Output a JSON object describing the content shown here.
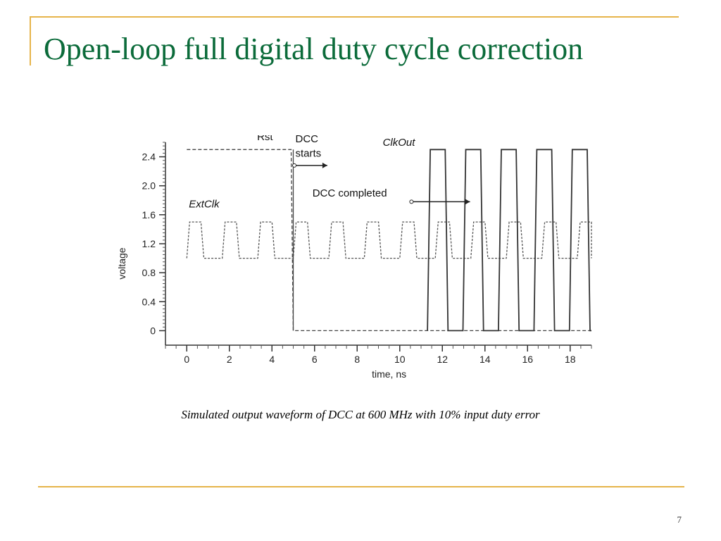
{
  "slide": {
    "title": "Open-loop full digital duty cycle correction",
    "caption": "Simulated output waveform of DCC at 600 MHz with 10% input duty error",
    "page_number": "7",
    "accent_color": "#e6b44a",
    "title_color": "#0b6b3a"
  },
  "chart_data": {
    "type": "line",
    "title": "",
    "xlabel": "time, ns",
    "ylabel": "voltage",
    "xlim": [
      -1,
      19
    ],
    "ylim": [
      -0.2,
      2.6
    ],
    "x_ticks": [
      0,
      2,
      4,
      6,
      8,
      10,
      12,
      14,
      16,
      18
    ],
    "y_ticks": [
      0,
      0.4,
      0.8,
      1.2,
      1.6,
      2.0,
      2.4
    ],
    "y_tick_labels": [
      "0",
      "0.4",
      "0.8",
      "1.2",
      "1.6",
      "2.0",
      "2.4"
    ],
    "grid": false,
    "series": [
      {
        "name": "Rst",
        "color": "#444444",
        "points": [
          [
            0,
            2.5
          ],
          [
            4.9,
            2.5
          ],
          [
            5.0,
            0.0
          ],
          [
            19,
            0.0
          ]
        ]
      },
      {
        "name": "ExtClk",
        "color": "#555555",
        "period_ns": 1.667,
        "low": 1.0,
        "high": 1.5,
        "duty": 0.4,
        "x_start": 0,
        "x_end": 19
      },
      {
        "name": "ClkOut",
        "color": "#333333",
        "period_ns": 1.667,
        "low": 0.0,
        "high": 2.5,
        "duty": 0.5,
        "x_start": 11.3,
        "x_end": 19
      }
    ],
    "annotations": [
      {
        "text": "Rst",
        "x": 3.3,
        "y": 2.63
      },
      {
        "text": "DCC",
        "x": 5.1,
        "y": 2.6
      },
      {
        "text": "starts",
        "x": 5.1,
        "y": 2.4
      },
      {
        "text": "ExtClk",
        "x": 0.1,
        "y": 1.7
      },
      {
        "text": "ClkOut",
        "x": 9.2,
        "y": 2.55
      },
      {
        "text": "DCC completed",
        "x": 5.9,
        "y": 1.85
      }
    ]
  }
}
